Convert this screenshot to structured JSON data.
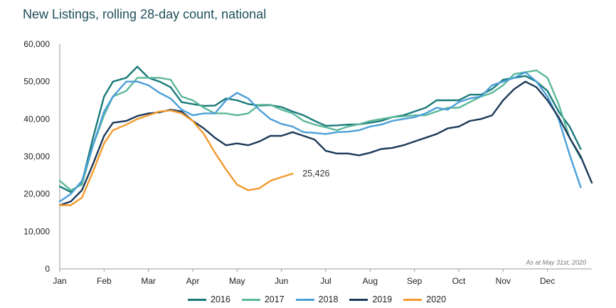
{
  "chart_data": {
    "type": "line",
    "title": "New Listings, rolling 28-day count, national",
    "note": "As at May 31st, 2020",
    "xlabel": "",
    "ylabel": "",
    "ylim": [
      0,
      60000
    ],
    "yticks": [
      "0",
      "10,000",
      "20,000",
      "30,000",
      "40,000",
      "50,000",
      "60,000"
    ],
    "ytick_values": [
      0,
      10000,
      20000,
      30000,
      40000,
      50000,
      60000
    ],
    "xlim": [
      0,
      12
    ],
    "xticks": [
      "Jan",
      "Feb",
      "Mar",
      "Apr",
      "May",
      "Jun",
      "Jul",
      "Aug",
      "Sep",
      "Oct",
      "Nov",
      "Dec"
    ],
    "xtick_positions": [
      0,
      1,
      2,
      3,
      4,
      5,
      6,
      7,
      8,
      9,
      10,
      11
    ],
    "end_label": {
      "series": "2020",
      "text": "25,426"
    },
    "series": [
      {
        "name": "2016",
        "color": "#1a7a7a",
        "points": [
          [
            0,
            22000
          ],
          [
            0.25,
            20500
          ],
          [
            0.5,
            23000
          ],
          [
            0.75,
            35000
          ],
          [
            1,
            46000
          ],
          [
            1.2,
            50000
          ],
          [
            1.5,
            51000
          ],
          [
            1.75,
            54000
          ],
          [
            2,
            51000
          ],
          [
            2.25,
            50000
          ],
          [
            2.5,
            48500
          ],
          [
            2.75,
            44500
          ],
          [
            3,
            44000
          ],
          [
            3.25,
            43500
          ],
          [
            3.5,
            43600
          ],
          [
            3.75,
            45500
          ],
          [
            4,
            45000
          ],
          [
            4.25,
            44000
          ],
          [
            4.5,
            43600
          ],
          [
            4.75,
            43700
          ],
          [
            5,
            43200
          ],
          [
            5.25,
            42000
          ],
          [
            5.5,
            41000
          ],
          [
            5.75,
            39500
          ],
          [
            6,
            38200
          ],
          [
            6.25,
            38300
          ],
          [
            6.5,
            38500
          ],
          [
            6.75,
            38600
          ],
          [
            7,
            39000
          ],
          [
            7.25,
            39500
          ],
          [
            7.5,
            40500
          ],
          [
            7.75,
            41000
          ],
          [
            8,
            42000
          ],
          [
            8.25,
            43000
          ],
          [
            8.5,
            45000
          ],
          [
            8.75,
            45000
          ],
          [
            9,
            45000
          ],
          [
            9.25,
            46500
          ],
          [
            9.5,
            46500
          ],
          [
            9.75,
            48000
          ],
          [
            10,
            50500
          ],
          [
            10.25,
            51000
          ],
          [
            10.5,
            51500
          ],
          [
            10.75,
            50000
          ],
          [
            11,
            47500
          ],
          [
            11.25,
            42000
          ],
          [
            11.5,
            38000
          ],
          [
            11.75,
            32000
          ]
        ]
      },
      {
        "name": "2017",
        "color": "#5cb89a",
        "points": [
          [
            0,
            23500
          ],
          [
            0.25,
            21000
          ],
          [
            0.5,
            22500
          ],
          [
            0.75,
            33000
          ],
          [
            1,
            41000
          ],
          [
            1.2,
            46000
          ],
          [
            1.5,
            47500
          ],
          [
            1.75,
            51000
          ],
          [
            2,
            51000
          ],
          [
            2.25,
            51000
          ],
          [
            2.5,
            50500
          ],
          [
            2.75,
            46000
          ],
          [
            3,
            45000
          ],
          [
            3.25,
            43000
          ],
          [
            3.5,
            41500
          ],
          [
            3.75,
            41500
          ],
          [
            4,
            41000
          ],
          [
            4.25,
            41500
          ],
          [
            4.5,
            43800
          ],
          [
            4.75,
            43800
          ],
          [
            5,
            42500
          ],
          [
            5.25,
            41500
          ],
          [
            5.5,
            39500
          ],
          [
            5.75,
            38500
          ],
          [
            6,
            37800
          ],
          [
            6.25,
            37000
          ],
          [
            6.5,
            38000
          ],
          [
            6.75,
            38600
          ],
          [
            7,
            39500
          ],
          [
            7.25,
            40000
          ],
          [
            7.5,
            40500
          ],
          [
            7.75,
            40700
          ],
          [
            8,
            41000
          ],
          [
            8.25,
            41000
          ],
          [
            8.5,
            42000
          ],
          [
            8.75,
            43000
          ],
          [
            9,
            43000
          ],
          [
            9.25,
            44500
          ],
          [
            9.5,
            46000
          ],
          [
            9.75,
            47000
          ],
          [
            10,
            49000
          ],
          [
            10.25,
            52000
          ],
          [
            10.5,
            52500
          ],
          [
            10.75,
            53000
          ],
          [
            11,
            51000
          ],
          [
            11.25,
            44000
          ],
          [
            11.5,
            35000
          ],
          [
            11.75,
            29500
          ]
        ]
      },
      {
        "name": "2018",
        "color": "#4a9fd8",
        "points": [
          [
            0,
            18000
          ],
          [
            0.25,
            20000
          ],
          [
            0.5,
            23500
          ],
          [
            0.75,
            33000
          ],
          [
            1,
            42000
          ],
          [
            1.2,
            46000
          ],
          [
            1.5,
            50000
          ],
          [
            1.75,
            50000
          ],
          [
            2,
            49000
          ],
          [
            2.25,
            47000
          ],
          [
            2.5,
            45500
          ],
          [
            2.75,
            42500
          ],
          [
            3,
            41000
          ],
          [
            3.25,
            41500
          ],
          [
            3.5,
            41500
          ],
          [
            3.75,
            45000
          ],
          [
            4,
            47000
          ],
          [
            4.25,
            45500
          ],
          [
            4.5,
            42500
          ],
          [
            4.75,
            40000
          ],
          [
            5,
            38700
          ],
          [
            5.25,
            38000
          ],
          [
            5.5,
            36500
          ],
          [
            5.75,
            36300
          ],
          [
            6,
            36000
          ],
          [
            6.25,
            36500
          ],
          [
            6.5,
            36600
          ],
          [
            6.75,
            37000
          ],
          [
            7,
            38000
          ],
          [
            7.25,
            38500
          ],
          [
            7.5,
            39500
          ],
          [
            7.75,
            40000
          ],
          [
            8,
            40500
          ],
          [
            8.25,
            41500
          ],
          [
            8.5,
            43000
          ],
          [
            8.75,
            42500
          ],
          [
            9,
            44500
          ],
          [
            9.25,
            45500
          ],
          [
            9.5,
            46000
          ],
          [
            9.75,
            49000
          ],
          [
            10,
            50000
          ],
          [
            10.25,
            51000
          ],
          [
            10.5,
            52500
          ],
          [
            10.75,
            50000
          ],
          [
            11,
            46000
          ],
          [
            11.25,
            40000
          ],
          [
            11.5,
            30500
          ],
          [
            11.75,
            21800
          ]
        ]
      },
      {
        "name": "2019",
        "color": "#1c3a5a",
        "points": [
          [
            0,
            17000
          ],
          [
            0.25,
            18000
          ],
          [
            0.5,
            21000
          ],
          [
            0.75,
            28000
          ],
          [
            1,
            35500
          ],
          [
            1.2,
            39000
          ],
          [
            1.5,
            39500
          ],
          [
            1.75,
            40800
          ],
          [
            2,
            41500
          ],
          [
            2.25,
            41800
          ],
          [
            2.5,
            42500
          ],
          [
            2.75,
            42000
          ],
          [
            3,
            39500
          ],
          [
            3.25,
            37500
          ],
          [
            3.5,
            35000
          ],
          [
            3.75,
            33000
          ],
          [
            4,
            33500
          ],
          [
            4.25,
            33000
          ],
          [
            4.5,
            34000
          ],
          [
            4.75,
            35500
          ],
          [
            5,
            35500
          ],
          [
            5.25,
            36500
          ],
          [
            5.5,
            35500
          ],
          [
            5.75,
            34500
          ],
          [
            6,
            31500
          ],
          [
            6.25,
            30800
          ],
          [
            6.5,
            30800
          ],
          [
            6.75,
            30300
          ],
          [
            7,
            31000
          ],
          [
            7.25,
            32000
          ],
          [
            7.5,
            32300
          ],
          [
            7.75,
            33000
          ],
          [
            8,
            34000
          ],
          [
            8.25,
            35000
          ],
          [
            8.5,
            36000
          ],
          [
            8.75,
            37500
          ],
          [
            9,
            38000
          ],
          [
            9.25,
            39500
          ],
          [
            9.5,
            40000
          ],
          [
            9.75,
            41000
          ],
          [
            10,
            45000
          ],
          [
            10.25,
            48000
          ],
          [
            10.5,
            50000
          ],
          [
            10.75,
            48500
          ],
          [
            11,
            45000
          ],
          [
            11.25,
            40500
          ],
          [
            11.5,
            35000
          ],
          [
            11.75,
            30000
          ],
          [
            12,
            23000
          ]
        ]
      },
      {
        "name": "2020",
        "color": "#f39a2e",
        "points": [
          [
            0,
            17000
          ],
          [
            0.25,
            17000
          ],
          [
            0.5,
            19000
          ],
          [
            0.75,
            26000
          ],
          [
            1,
            33500
          ],
          [
            1.2,
            37000
          ],
          [
            1.5,
            38500
          ],
          [
            1.75,
            40000
          ],
          [
            2,
            41000
          ],
          [
            2.25,
            42000
          ],
          [
            2.5,
            42300
          ],
          [
            2.75,
            41500
          ],
          [
            3,
            39500
          ],
          [
            3.25,
            36000
          ],
          [
            3.5,
            31000
          ],
          [
            3.75,
            26500
          ],
          [
            4,
            22500
          ],
          [
            4.25,
            21000
          ],
          [
            4.5,
            21500
          ],
          [
            4.75,
            23500
          ],
          [
            5,
            24500
          ],
          [
            5.25,
            25426
          ]
        ]
      }
    ]
  }
}
